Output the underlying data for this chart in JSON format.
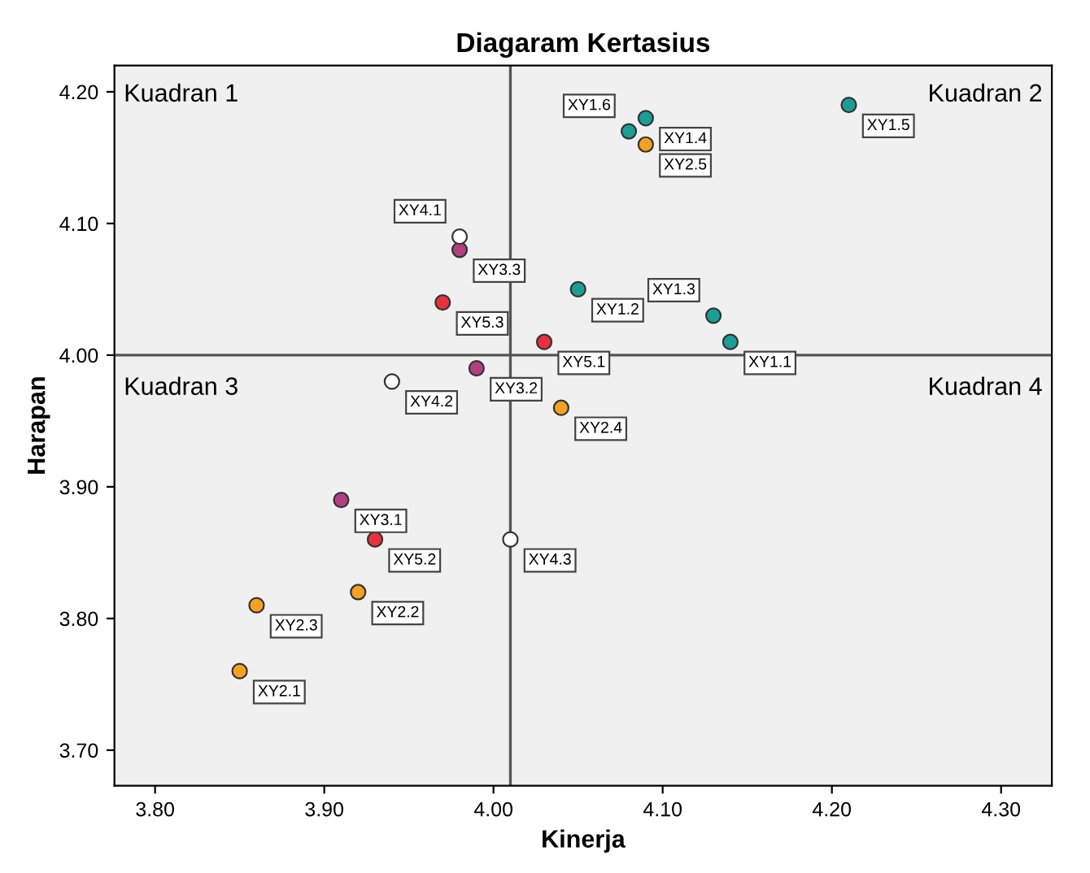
{
  "chart_data": {
    "type": "scatter",
    "title": "Diagaram Kertasius",
    "xlabel": "Kinerja",
    "ylabel": "Harapan",
    "xlim": [
      3.776,
      4.33
    ],
    "ylim": [
      3.673,
      4.22
    ],
    "xticks": [
      {
        "value": 3.8,
        "label": "3.80"
      },
      {
        "value": 3.9,
        "label": "3.90"
      },
      {
        "value": 4.0,
        "label": "4.00"
      },
      {
        "value": 4.1,
        "label": "4.10"
      },
      {
        "value": 4.2,
        "label": "4.20"
      },
      {
        "value": 4.3,
        "label": "4.30"
      }
    ],
    "yticks": [
      {
        "value": 3.7,
        "label": "3.70"
      },
      {
        "value": 3.8,
        "label": "3.80"
      },
      {
        "value": 3.9,
        "label": "3.90"
      },
      {
        "value": 4.0,
        "label": "4.00"
      },
      {
        "value": 4.1,
        "label": "4.10"
      },
      {
        "value": 4.2,
        "label": "4.20"
      }
    ],
    "marker": "circle",
    "grid": false,
    "series": [
      {
        "color": "#1a9e96",
        "x": [
          4.14,
          4.05,
          4.13,
          4.09,
          4.21,
          4.08
        ],
        "values": [
          4.01,
          4.05,
          4.03,
          4.18,
          4.19,
          4.17
        ]
      },
      {
        "color": "#f7a021",
        "x": [
          3.85,
          3.92,
          3.86,
          4.04,
          4.09
        ],
        "values": [
          3.76,
          3.82,
          3.81,
          3.96,
          4.16
        ]
      },
      {
        "color": "#b23f80",
        "x": [
          3.91,
          3.99,
          3.98
        ],
        "values": [
          3.89,
          3.99,
          4.08
        ]
      },
      {
        "color": "#ffffff",
        "x": [
          3.98,
          3.94,
          4.01
        ],
        "values": [
          4.09,
          3.98,
          3.86
        ]
      },
      {
        "color": "#e8313a",
        "x": [
          4.03,
          3.93,
          3.97
        ],
        "values": [
          4.01,
          3.86,
          4.04
        ]
      }
    ],
    "ref_lines": [
      {
        "axis": "x",
        "value": 4.01,
        "color": "#555555"
      },
      {
        "axis": "y",
        "value": 4.0,
        "color": "#555555"
      }
    ],
    "annotations": [
      "Kuadran 1",
      "Kuadran 2",
      "Kuadran 3",
      "Kuadran 4",
      {
        "text": "XY1.1",
        "x": 4.14,
        "y": 4.01
      },
      {
        "text": "XY1.2",
        "x": 4.05,
        "y": 4.05
      },
      {
        "text": "XY1.3",
        "x": 4.13,
        "y": 4.03
      },
      {
        "text": "XY1.4",
        "x": 4.09,
        "y": 4.18
      },
      {
        "text": "XY1.5",
        "x": 4.21,
        "y": 4.19
      },
      {
        "text": "XY1.6",
        "x": 4.08,
        "y": 4.17
      },
      {
        "text": "XY2.1",
        "x": 3.85,
        "y": 3.76
      },
      {
        "text": "XY2.2",
        "x": 3.92,
        "y": 3.82
      },
      {
        "text": "XY2.3",
        "x": 3.86,
        "y": 3.81
      },
      {
        "text": "XY2.4",
        "x": 4.04,
        "y": 3.96
      },
      {
        "text": "XY2.5",
        "x": 4.09,
        "y": 4.16
      },
      {
        "text": "XY3.1",
        "x": 3.91,
        "y": 3.89
      },
      {
        "text": "XY3.2",
        "x": 3.99,
        "y": 3.99
      },
      {
        "text": "XY3.3",
        "x": 3.98,
        "y": 4.08
      },
      {
        "text": "XY4.1",
        "x": 3.98,
        "y": 4.09
      },
      {
        "text": "XY4.2",
        "x": 3.94,
        "y": 3.98
      },
      {
        "text": "XY4.3",
        "x": 4.01,
        "y": 3.86
      },
      {
        "text": "XY5.1",
        "x": 4.03,
        "y": 4.01
      },
      {
        "text": "XY5.2",
        "x": 3.93,
        "y": 3.86
      },
      {
        "text": "XY5.3",
        "x": 3.97,
        "y": 4.04
      }
    ]
  }
}
